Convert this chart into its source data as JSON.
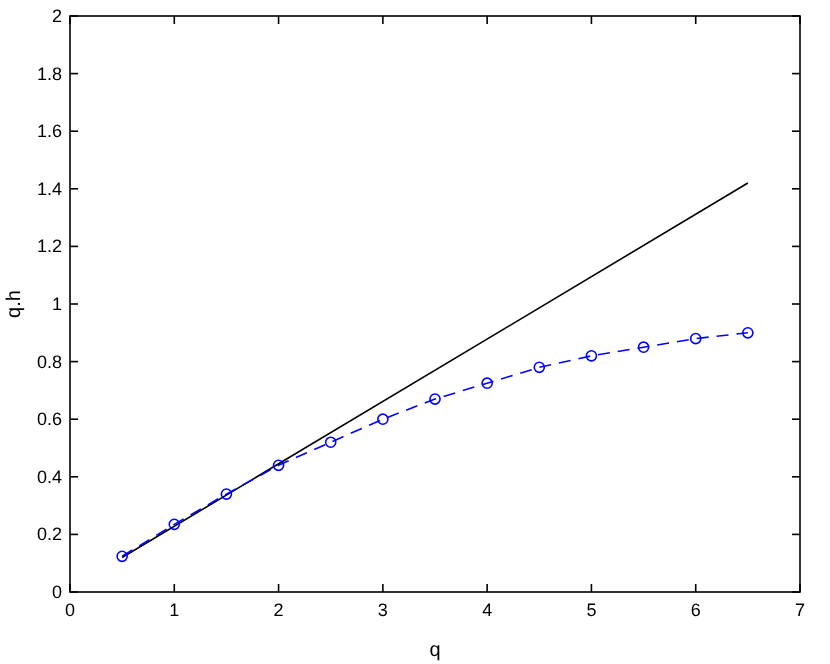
{
  "chart_data": {
    "type": "line",
    "xlabel": "q",
    "ylabel": "q.h",
    "x": [
      0.5,
      1,
      1.5,
      2,
      2.5,
      3,
      3.5,
      4,
      4.5,
      5,
      5.5,
      6,
      6.5
    ],
    "series": [
      {
        "color": "#000000",
        "x": [
          0.5,
          6.5
        ],
        "values": [
          0.12,
          1.42
        ],
        "marker": "none",
        "line_style": "solid"
      },
      {
        "color": "#0000ff",
        "values": [
          0.124,
          0.235,
          0.34,
          0.44,
          0.52,
          0.6,
          0.67,
          0.725,
          0.78,
          0.82,
          0.85,
          0.88,
          0.9
        ],
        "marker": "circle",
        "line_style": "dashed"
      }
    ],
    "xlim": [
      0,
      7
    ],
    "xticks": [
      0,
      1,
      2,
      3,
      4,
      5,
      6,
      7
    ],
    "ylim": [
      0,
      2
    ],
    "yticks": [
      0,
      0.2,
      0.4,
      0.6,
      0.8,
      1,
      1.2,
      1.4,
      1.6,
      1.8,
      2
    ],
    "grid": false
  }
}
